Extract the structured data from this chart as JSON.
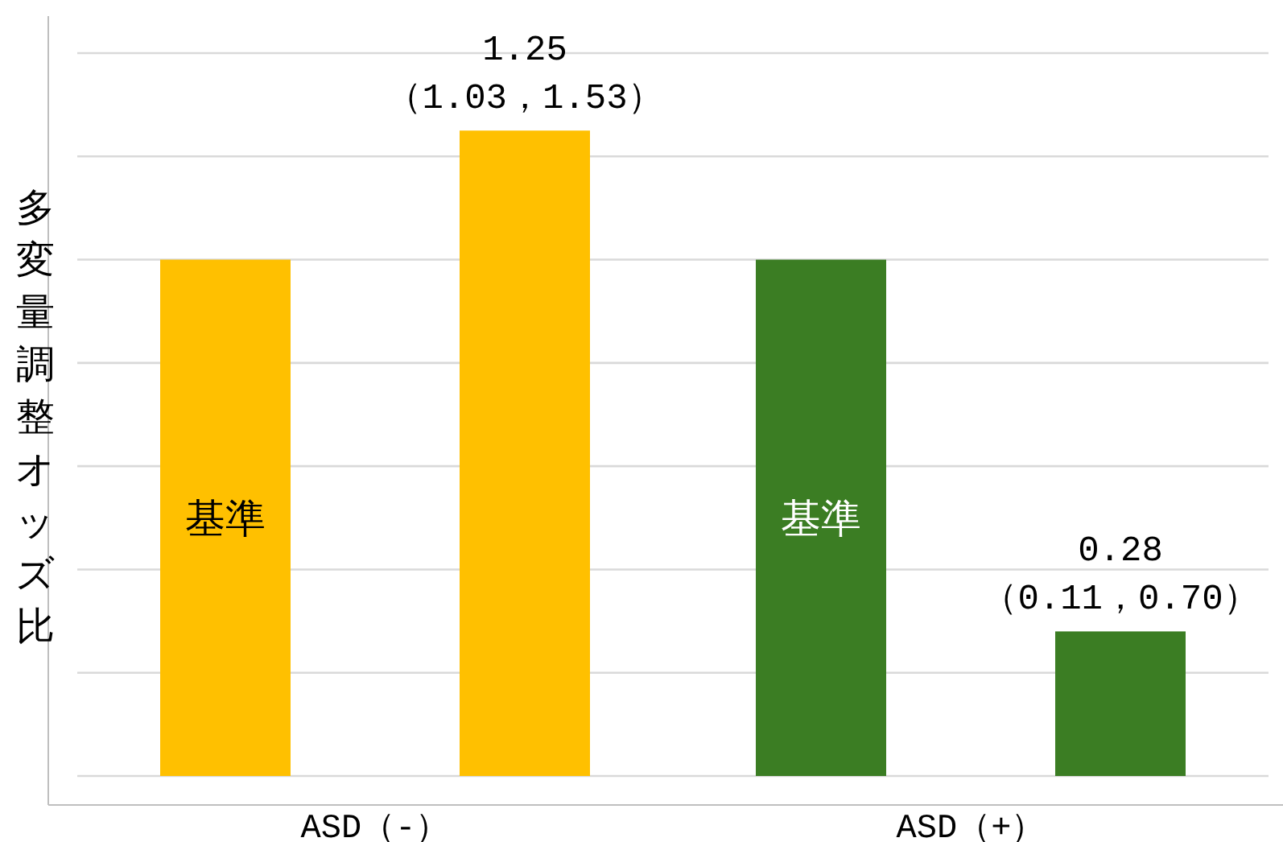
{
  "chart_data": {
    "type": "bar",
    "ylabel": "多変量調整オッズ比",
    "categories": [
      "ASD（-）",
      "ASD（+）"
    ],
    "series": [
      {
        "colors": [
          "#ffc000",
          "#3b7d23"
        ],
        "values": [
          1.0,
          1.0
        ],
        "value_labels": [
          "基準",
          "基準"
        ]
      },
      {
        "colors": [
          "#ffc000",
          "#3b7d23"
        ],
        "values": [
          1.25,
          0.28
        ],
        "value_labels": [
          "1.25 （1.03，1.53）",
          "0.28 （0.11，0.70）"
        ]
      }
    ],
    "ylim": [
      0,
      1.4
    ],
    "yticks": [
      {
        "value": 0,
        "label": null
      },
      {
        "value": 0.2,
        "label": null
      },
      {
        "value": 0.4,
        "label": null
      },
      {
        "value": 0.6,
        "label": null
      },
      {
        "value": 0.8,
        "label": null
      },
      {
        "value": 1.0,
        "label": null
      },
      {
        "value": 1.2,
        "label": null
      },
      {
        "value": 1.4,
        "label": null
      }
    ],
    "grid": "y",
    "tick_labels": "x"
  }
}
